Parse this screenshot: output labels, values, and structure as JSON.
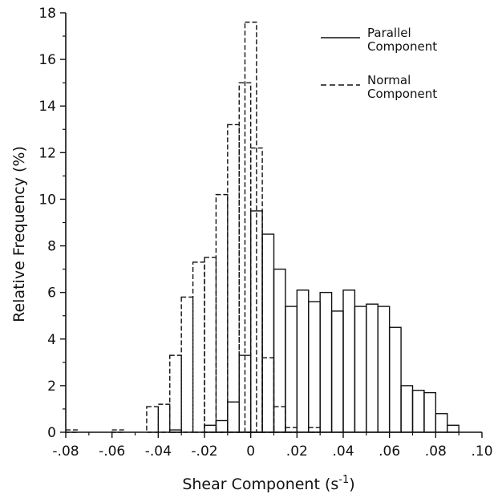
{
  "chart_data": {
    "type": "bar",
    "xlabel": "Shear Component (s",
    "xlabel_superscript": "-1",
    "xlabel_close": ")",
    "ylabel": "Relative Frequency (%)",
    "xlim": [
      -0.08,
      0.1
    ],
    "ylim": [
      0,
      18
    ],
    "bin_width": 0.005,
    "x_ticks": [
      -0.08,
      -0.06,
      -0.04,
      -0.02,
      0,
      0.02,
      0.04,
      0.06,
      0.08,
      0.1
    ],
    "x_tick_labels": [
      "-.08",
      "-.06",
      "-.04",
      "-.02",
      "0",
      ".02",
      ".04",
      ".06",
      ".08",
      ".10"
    ],
    "y_ticks": [
      0,
      2,
      4,
      6,
      8,
      10,
      12,
      14,
      16,
      18
    ],
    "y_tick_labels": [
      "0",
      "2",
      "4",
      "6",
      "8",
      "10",
      "12",
      "14",
      "16",
      "18"
    ],
    "grid": false,
    "legend_position": "top-right",
    "series": [
      {
        "name": "Parallel Component",
        "line_style": "solid",
        "bins": [
          [
            -0.035,
            0.1
          ],
          [
            -0.02,
            0.3
          ],
          [
            -0.015,
            0.5
          ],
          [
            -0.01,
            1.3
          ],
          [
            -0.005,
            3.3
          ],
          [
            0.0,
            9.5
          ],
          [
            0.005,
            8.5
          ],
          [
            0.01,
            7.0
          ],
          [
            0.015,
            5.4
          ],
          [
            0.02,
            6.1
          ],
          [
            0.025,
            5.6
          ],
          [
            0.03,
            6.0
          ],
          [
            0.035,
            5.2
          ],
          [
            0.04,
            6.1
          ],
          [
            0.045,
            5.4
          ],
          [
            0.05,
            5.5
          ],
          [
            0.055,
            5.4
          ],
          [
            0.06,
            4.5
          ],
          [
            0.065,
            2.0
          ],
          [
            0.07,
            1.8
          ],
          [
            0.075,
            1.7
          ],
          [
            0.08,
            0.8
          ],
          [
            0.085,
            0.3
          ]
        ]
      },
      {
        "name": "Normal Component",
        "line_style": "dashed",
        "bins": [
          [
            -0.08,
            0.1
          ],
          [
            -0.06,
            0.1
          ],
          [
            -0.045,
            1.1
          ],
          [
            -0.04,
            1.2
          ],
          [
            -0.035,
            3.3
          ],
          [
            -0.03,
            5.8
          ],
          [
            -0.025,
            7.3
          ],
          [
            -0.02,
            7.5
          ],
          [
            -0.015,
            10.2
          ],
          [
            -0.01,
            13.2
          ],
          [
            -0.005,
            15.0
          ],
          [
            -0.0025,
            17.6
          ],
          [
            0.0,
            12.2
          ],
          [
            0.005,
            3.2
          ],
          [
            0.01,
            1.1
          ],
          [
            0.015,
            0.2
          ],
          [
            0.025,
            0.2
          ]
        ]
      }
    ]
  }
}
